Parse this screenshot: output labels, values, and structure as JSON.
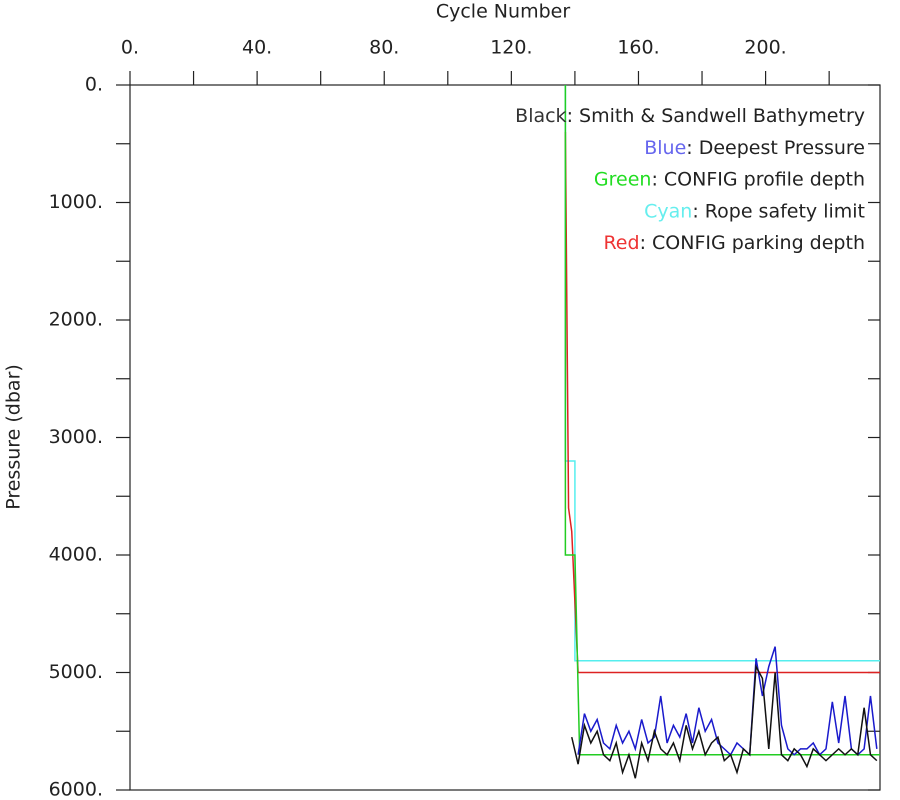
{
  "chart_data": {
    "type": "line",
    "x_label": "Cycle Number",
    "y_label": "Pressure (dbar)",
    "xlim": [
      0,
      236
    ],
    "ylim": [
      0,
      6000
    ],
    "y_inverted": true,
    "x_axis_position": "top",
    "xticks": [
      {
        "value": 0,
        "label": "0."
      },
      {
        "value": 40,
        "label": "40."
      },
      {
        "value": 80,
        "label": "80."
      },
      {
        "value": 120,
        "label": "120."
      },
      {
        "value": 160,
        "label": "160."
      },
      {
        "value": 200,
        "label": "200."
      }
    ],
    "xminorticks": [
      20,
      60,
      100,
      140,
      180,
      220
    ],
    "yticks": [
      {
        "value": 0,
        "label": "0."
      },
      {
        "value": 1000,
        "label": "1000."
      },
      {
        "value": 2000,
        "label": "2000."
      },
      {
        "value": 3000,
        "label": "3000."
      },
      {
        "value": 4000,
        "label": "4000."
      },
      {
        "value": 5000,
        "label": "5000."
      },
      {
        "value": 6000,
        "label": "6000."
      }
    ],
    "yminorticks": [
      500,
      1500,
      2500,
      3500,
      4500,
      5500
    ],
    "legend_separator": ": ",
    "series": [
      {
        "color_name": "Black",
        "name": "Smith & Sandwell Bathymetry",
        "color": "#111111",
        "legend_color": "#333333",
        "x": [
          139,
          141,
          143,
          145,
          147,
          149,
          151,
          153,
          155,
          157,
          159,
          161,
          163,
          165,
          167,
          169,
          171,
          173,
          175,
          177,
          179,
          181,
          183,
          185,
          187,
          189,
          191,
          193,
          195,
          197,
          199,
          201,
          203,
          205,
          207,
          209,
          211,
          213,
          215,
          217,
          219,
          221,
          223,
          225,
          227,
          229,
          231,
          233,
          235
        ],
        "values": [
          5550,
          5780,
          5450,
          5600,
          5500,
          5700,
          5750,
          5600,
          5850,
          5700,
          5900,
          5600,
          5750,
          5500,
          5650,
          5700,
          5600,
          5750,
          5450,
          5650,
          5500,
          5700,
          5600,
          5550,
          5750,
          5700,
          5850,
          5650,
          5700,
          4950,
          5050,
          5650,
          5000,
          5700,
          5750,
          5650,
          5700,
          5800,
          5650,
          5700,
          5750,
          5700,
          5650,
          5700,
          5650,
          5700,
          5300,
          5700,
          5750
        ]
      },
      {
        "color_name": "Blue",
        "name": "Deepest Pressure",
        "color": "#1a1acc",
        "legend_color": "#6666ee",
        "x": [
          141,
          143,
          145,
          147,
          149,
          151,
          153,
          155,
          157,
          159,
          161,
          163,
          165,
          167,
          169,
          171,
          173,
          175,
          177,
          179,
          181,
          183,
          185,
          187,
          189,
          191,
          193,
          195,
          197,
          199,
          201,
          203,
          205,
          207,
          209,
          211,
          213,
          215,
          217,
          219,
          221,
          223,
          225,
          227,
          229,
          231,
          233,
          235
        ],
        "values": [
          5700,
          5350,
          5500,
          5400,
          5600,
          5650,
          5450,
          5600,
          5500,
          5650,
          5400,
          5600,
          5550,
          5200,
          5600,
          5450,
          5550,
          5350,
          5600,
          5300,
          5500,
          5400,
          5600,
          5650,
          5700,
          5600,
          5650,
          5700,
          4880,
          5200,
          4950,
          4780,
          5450,
          5650,
          5700,
          5650,
          5650,
          5600,
          5700,
          5650,
          5250,
          5600,
          5200,
          5650,
          5700,
          5650,
          5200,
          5650
        ]
      },
      {
        "color_name": "Green",
        "name": "CONFIG profile depth",
        "color": "#22cc22",
        "legend_color": "#22dd22",
        "x": [
          137,
          137,
          140,
          141.5,
          236
        ],
        "values": [
          0,
          4000,
          4000,
          5700,
          5700
        ]
      },
      {
        "color_name": "Cyan",
        "name": "Rope safety limit",
        "color": "#55eeee",
        "legend_color": "#66eeee",
        "x": [
          137,
          137,
          140,
          140,
          236
        ],
        "values": [
          0,
          3200,
          3200,
          4900,
          4900
        ]
      },
      {
        "color_name": "Red",
        "name": "CONFIG parking depth",
        "color": "#dd2222",
        "legend_color": "#ee3333",
        "x": [
          137,
          138,
          139,
          141,
          236
        ],
        "values": [
          400,
          3600,
          3800,
          5000,
          5000
        ]
      }
    ]
  }
}
